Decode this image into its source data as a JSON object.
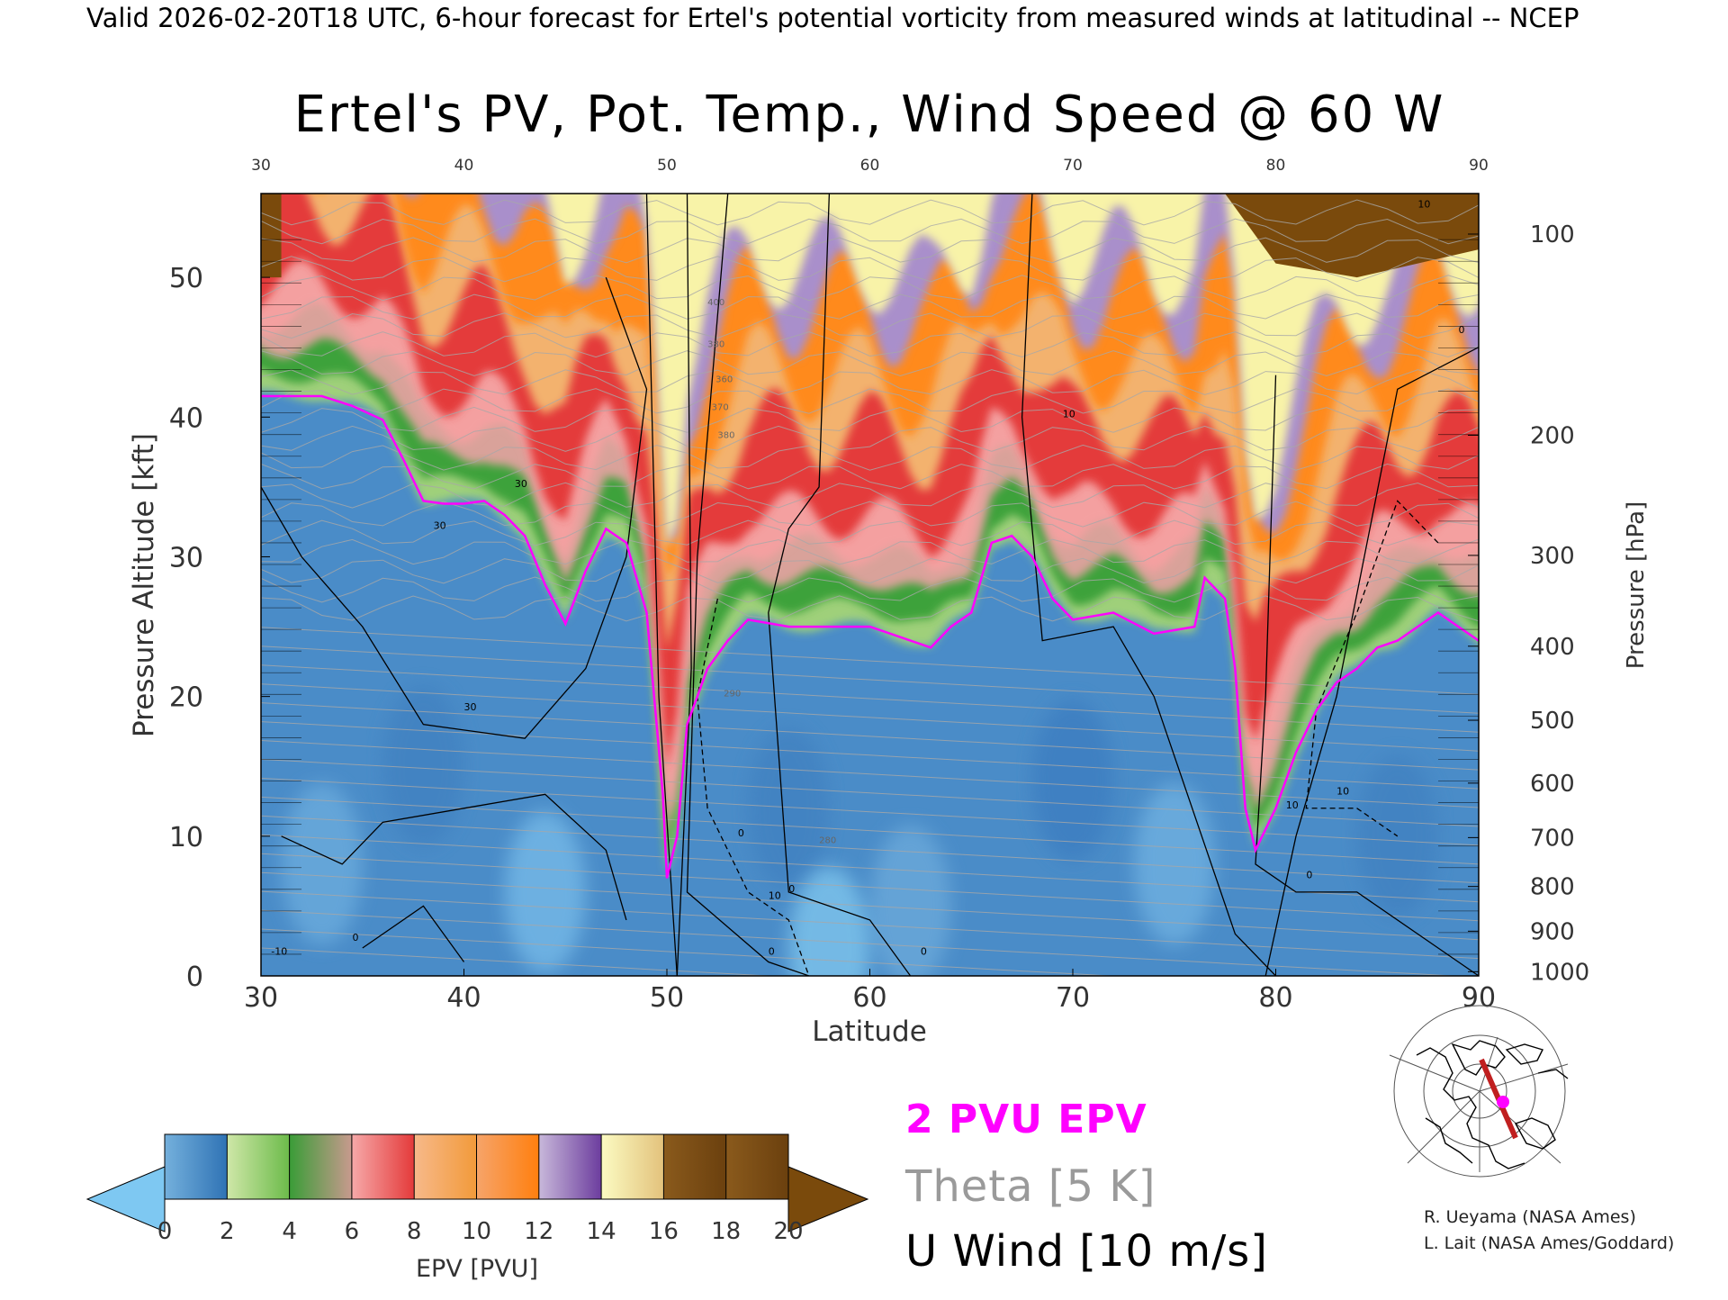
{
  "header": {
    "valid_line": "Valid 2026-02-20T18 UTC, 6-hour forecast for Ertel's potential vorticity from measured winds at latitudinal -- NCEP"
  },
  "chart_data": {
    "type": "heatmap",
    "title": "Ertel's PV, Pot. Temp., Wind Speed @ 60 W",
    "xlabel": "Latitude",
    "ylabel": "Pressure Altitude [kft]",
    "ylabel_right": "Pressure [hPa]",
    "xlim": [
      30,
      90
    ],
    "ylim": [
      0,
      56
    ],
    "x_ticks": [
      "30",
      "40",
      "50",
      "60",
      "70",
      "80",
      "90"
    ],
    "x_ticks_top": [
      "30",
      "40",
      "50",
      "60",
      "70",
      "80",
      "90"
    ],
    "y_ticks": [
      "0",
      "10",
      "20",
      "30",
      "40",
      "50"
    ],
    "pressure_ticks": [
      {
        "label": "100",
        "kft": 53.1
      },
      {
        "label": "200",
        "kft": 38.7
      },
      {
        "label": "300",
        "kft": 30.1
      },
      {
        "label": "400",
        "kft": 23.6
      },
      {
        "label": "500",
        "kft": 18.3
      },
      {
        "label": "600",
        "kft": 13.8
      },
      {
        "label": "700",
        "kft": 9.9
      },
      {
        "label": "800",
        "kft": 6.4
      },
      {
        "label": "900",
        "kft": 3.2
      },
      {
        "label": "1000",
        "kft": 0.3
      }
    ],
    "grid": false,
    "colorbar": {
      "label": "EPV [PVU]",
      "ticks": [
        "0",
        "2",
        "4",
        "6",
        "8",
        "10",
        "12",
        "14",
        "16",
        "18",
        "20"
      ],
      "under_color": "#7ec8f2",
      "over_color": "#7a4a0c",
      "bands": [
        [
          "#74b0dc",
          "#2f73b5"
        ],
        [
          "#cfe7a8",
          "#6cbb4a"
        ],
        [
          "#3a9c37",
          "#c89a8e"
        ],
        [
          "#f6a9a9",
          "#e43a3a"
        ],
        [
          "#f7b98a",
          "#f29a3a"
        ],
        [
          "#f6a46a",
          "#ff7f0e"
        ],
        [
          "#c8b8da",
          "#6c3d9e"
        ],
        [
          "#fbfbc2",
          "#e3c27c"
        ],
        [
          "#8a5a1c",
          "#6b400e"
        ]
      ]
    },
    "tropopause_2pvu": [
      [
        30,
        41.5
      ],
      [
        33,
        41.5
      ],
      [
        34.5,
        40.8
      ],
      [
        36,
        39.8
      ],
      [
        37,
        37
      ],
      [
        38,
        34
      ],
      [
        39,
        33.8
      ],
      [
        40,
        33.8
      ],
      [
        41,
        34
      ],
      [
        42,
        33
      ],
      [
        43,
        31.5
      ],
      [
        44,
        28
      ],
      [
        45,
        25.2
      ],
      [
        46,
        29
      ],
      [
        47,
        32
      ],
      [
        48,
        31
      ],
      [
        49,
        26
      ],
      [
        49.8,
        13
      ],
      [
        50,
        7
      ],
      [
        50.5,
        10
      ],
      [
        51,
        18
      ],
      [
        52,
        22
      ],
      [
        53,
        24
      ],
      [
        54,
        25.5
      ],
      [
        56,
        25
      ],
      [
        58,
        25
      ],
      [
        60,
        25
      ],
      [
        61,
        24.5
      ],
      [
        62,
        24
      ],
      [
        63,
        23.5
      ],
      [
        64,
        25
      ],
      [
        65,
        26
      ],
      [
        66,
        31
      ],
      [
        67,
        31.5
      ],
      [
        68,
        30
      ],
      [
        69,
        27
      ],
      [
        70,
        25.5
      ],
      [
        72,
        26
      ],
      [
        74,
        24.5
      ],
      [
        76,
        25
      ],
      [
        76.5,
        28.5
      ],
      [
        77.5,
        27
      ],
      [
        78,
        22
      ],
      [
        78.5,
        12
      ],
      [
        79,
        9
      ],
      [
        80,
        12
      ],
      [
        81,
        16
      ],
      [
        82,
        19
      ],
      [
        83,
        21
      ],
      [
        84,
        22
      ],
      [
        85,
        23.5
      ],
      [
        86,
        24
      ],
      [
        87,
        25
      ],
      [
        88,
        26
      ],
      [
        89,
        25
      ],
      [
        90,
        24
      ]
    ],
    "theta_labels": [
      {
        "text": "280",
        "lat": 57.5,
        "kft": 9.5
      },
      {
        "text": "290",
        "lat": 52.8,
        "kft": 20
      },
      {
        "text": "380",
        "lat": 52.5,
        "kft": 38.5
      },
      {
        "text": "370",
        "lat": 52.2,
        "kft": 40.5
      },
      {
        "text": "360",
        "lat": 52.4,
        "kft": 42.5
      },
      {
        "text": "380",
        "lat": 52.0,
        "kft": 45
      },
      {
        "text": "400",
        "lat": 52.0,
        "kft": 48
      }
    ],
    "u_wind_labels": [
      {
        "text": "-10",
        "lat": 30.5,
        "kft": 1.5
      },
      {
        "text": "0",
        "lat": 34.5,
        "kft": 2.5
      },
      {
        "text": "30",
        "lat": 40,
        "kft": 19
      },
      {
        "text": "30",
        "lat": 42.5,
        "kft": 35
      },
      {
        "text": "30",
        "lat": 38.5,
        "kft": 32
      },
      {
        "text": "10",
        "lat": 55,
        "kft": 5.5
      },
      {
        "text": "0",
        "lat": 53.5,
        "kft": 10
      },
      {
        "text": "0",
        "lat": 55,
        "kft": 1.5
      },
      {
        "text": "0",
        "lat": 56,
        "kft": 6
      },
      {
        "text": "0",
        "lat": 62.5,
        "kft": 1.5
      },
      {
        "text": "10",
        "lat": 69.5,
        "kft": 40
      },
      {
        "text": "10",
        "lat": 80.5,
        "kft": 12
      },
      {
        "text": "10",
        "lat": 83,
        "kft": 13
      },
      {
        "text": "0",
        "lat": 81.5,
        "kft": 7
      },
      {
        "text": "10",
        "lat": 87,
        "kft": 55
      },
      {
        "text": "0",
        "lat": 89,
        "kft": 46
      }
    ],
    "map_inset": {
      "section_longitude": "60 W"
    }
  },
  "legend": {
    "pvu_label": "2 PVU EPV",
    "theta_label": "Theta [5 K]",
    "wind_label": "U Wind [10 m/s]",
    "pvu_color": "#ff00ff",
    "theta_color": "#9a9a9a",
    "wind_color": "#000000"
  },
  "credits": {
    "line1": "R. Ueyama (NASA Ames)",
    "line2": "L. Lait (NASA Ames/Goddard)"
  }
}
